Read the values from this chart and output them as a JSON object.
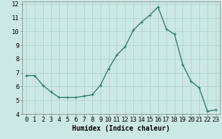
{
  "x": [
    0,
    1,
    2,
    3,
    4,
    5,
    6,
    7,
    8,
    9,
    10,
    11,
    12,
    13,
    14,
    15,
    16,
    17,
    18,
    19,
    20,
    21,
    22,
    23
  ],
  "y": [
    6.8,
    6.8,
    6.1,
    5.6,
    5.2,
    5.2,
    5.2,
    5.3,
    5.4,
    6.1,
    7.3,
    8.3,
    8.9,
    10.1,
    10.7,
    11.2,
    11.8,
    10.2,
    9.8,
    7.6,
    6.4,
    5.9,
    4.2,
    4.3
  ],
  "line_color": "#2a7a6a",
  "marker": "+",
  "marker_size": 3,
  "bg_color": "#cce8e4",
  "grid_color": "#aacec8",
  "xlabel": "Humidex (Indice chaleur)",
  "xlim": [
    -0.5,
    23.5
  ],
  "ylim": [
    4,
    12.2
  ],
  "yticks": [
    4,
    5,
    6,
    7,
    8,
    9,
    10,
    11,
    12
  ],
  "xticks": [
    0,
    1,
    2,
    3,
    4,
    5,
    6,
    7,
    8,
    9,
    10,
    11,
    12,
    13,
    14,
    15,
    16,
    17,
    18,
    19,
    20,
    21,
    22,
    23
  ],
  "xlabel_fontsize": 7,
  "tick_fontsize": 6.5,
  "line_width": 1.0
}
